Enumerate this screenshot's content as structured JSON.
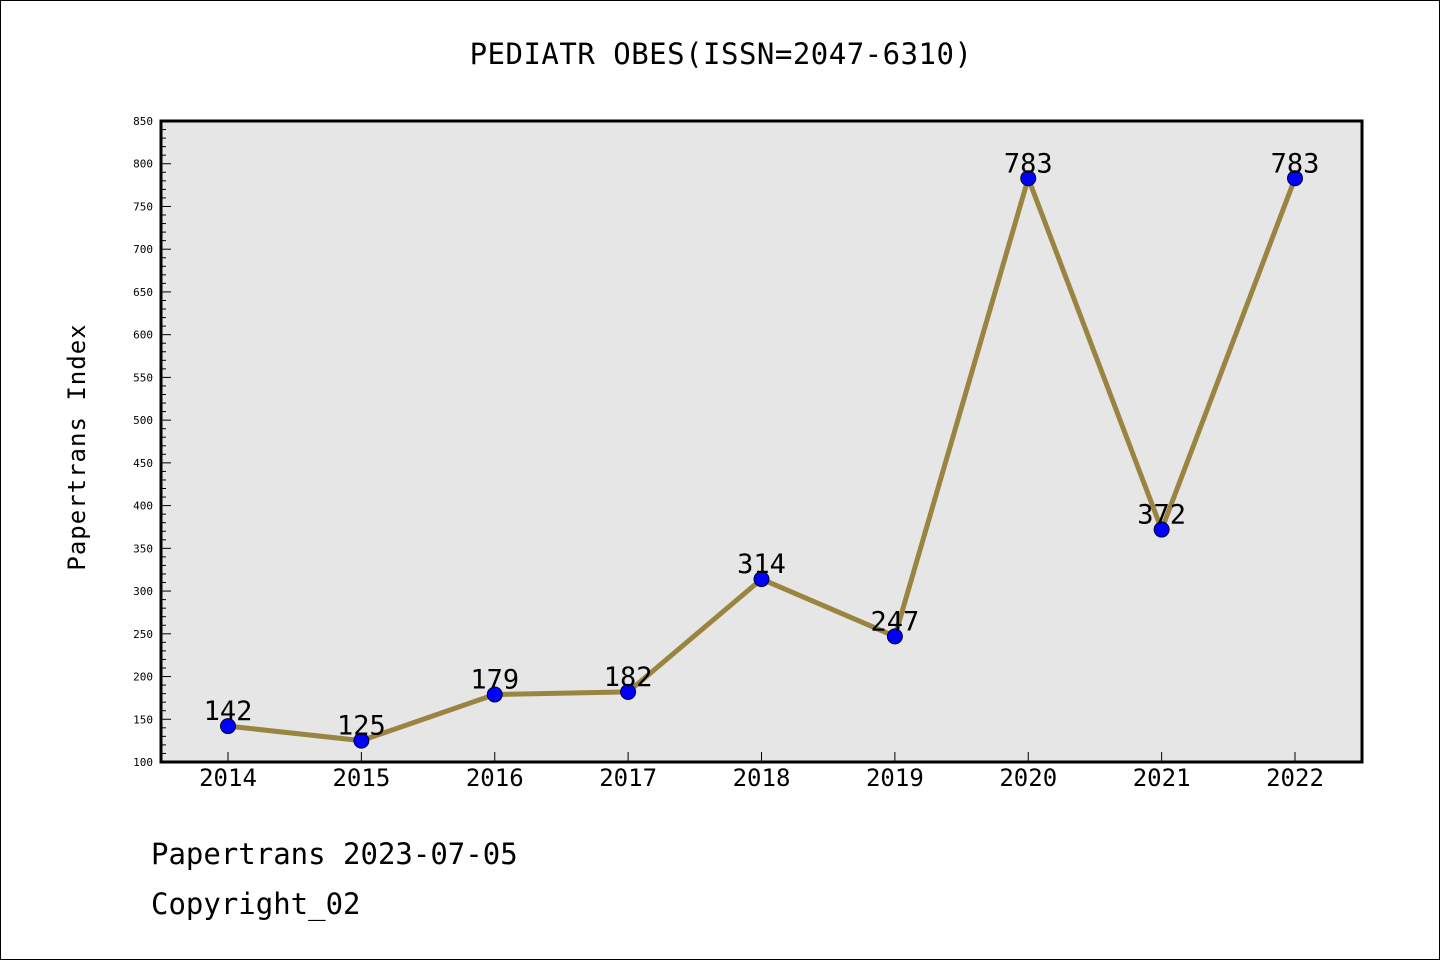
{
  "footer": {
    "date_line": "Papertrans 2023-07-05",
    "copyright_line": "Copyright_02"
  },
  "chart_data": {
    "type": "line",
    "title": "PEDIATR OBES(ISSN=2047-6310)",
    "xlabel": "",
    "ylabel": "Papertrans Index",
    "categories": [
      "2014",
      "2015",
      "2016",
      "2017",
      "2018",
      "2019",
      "2020",
      "2021",
      "2022"
    ],
    "values": [
      142,
      125,
      179,
      182,
      314,
      247,
      783,
      372,
      783
    ],
    "data_labels": [
      "142",
      "125",
      "179",
      "182",
      "314",
      "247",
      "783",
      "372",
      "783"
    ],
    "ylim": [
      100,
      850
    ],
    "yticks": [
      100,
      150,
      200,
      250,
      300,
      350,
      400,
      450,
      500,
      550,
      600,
      650,
      700,
      750,
      800,
      850
    ],
    "grid": false,
    "legend": "none",
    "colors": {
      "line": "#9a8540",
      "marker": "#0000ff",
      "plot_background": "#e6e6e6",
      "axis": "#000000"
    }
  }
}
